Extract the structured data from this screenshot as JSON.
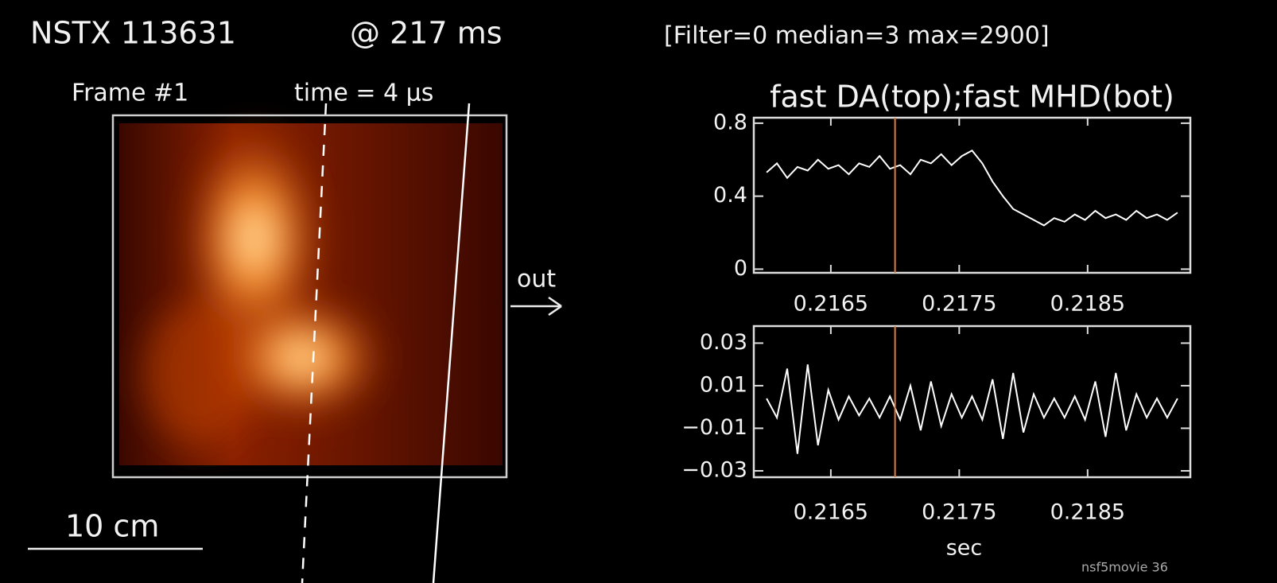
{
  "header": {
    "title": "NSTX 113631",
    "time": "@ 217 ms",
    "settings": "[Filter=0  median=3  max=2900]"
  },
  "image_panel": {
    "frame": "Frame #1",
    "time": "time = 4 μs",
    "direction": "out",
    "scale": "10 cm"
  },
  "footer": "nsf5movie 36",
  "chart_data": [
    {
      "type": "line",
      "title": "fast DA(top);fast MHD(bot)",
      "x": [
        0.216,
        0.21608,
        0.21616,
        0.21624,
        0.21632,
        0.2164,
        0.21648,
        0.21656,
        0.21664,
        0.21672,
        0.2168,
        0.21688,
        0.21696,
        0.21704,
        0.21712,
        0.2172,
        0.21728,
        0.21736,
        0.21744,
        0.21752,
        0.2176,
        0.21768,
        0.21776,
        0.21784,
        0.21792,
        0.218,
        0.21808,
        0.21816,
        0.21824,
        0.21832,
        0.2184,
        0.21848,
        0.21856,
        0.21864,
        0.21872,
        0.2188,
        0.21888,
        0.21896,
        0.21904,
        0.21912,
        0.2192
      ],
      "series": [
        {
          "color": "#ffffff",
          "values": [
            0.53,
            0.58,
            0.5,
            0.56,
            0.54,
            0.6,
            0.55,
            0.57,
            0.52,
            0.58,
            0.56,
            0.62,
            0.55,
            0.57,
            0.52,
            0.6,
            0.58,
            0.63,
            0.57,
            0.62,
            0.65,
            0.58,
            0.48,
            0.4,
            0.33,
            0.3,
            0.27,
            0.24,
            0.28,
            0.26,
            0.3,
            0.27,
            0.32,
            0.28,
            0.3,
            0.27,
            0.32,
            0.28,
            0.3,
            0.27,
            0.31
          ]
        }
      ],
      "xlim": [
        0.2159,
        0.2193
      ],
      "ylim": [
        -0.02,
        0.83
      ],
      "xticks": [
        0.2165,
        0.2175,
        0.2185
      ],
      "yticks": [
        0,
        0.4,
        0.8
      ],
      "cursor": 0.217,
      "cursor_color": "#e07a3a"
    },
    {
      "type": "line",
      "x_label": "sec",
      "x": [
        0.216,
        0.21608,
        0.21616,
        0.21624,
        0.21632,
        0.2164,
        0.21648,
        0.21656,
        0.21664,
        0.21672,
        0.2168,
        0.21688,
        0.21696,
        0.21704,
        0.21712,
        0.2172,
        0.21728,
        0.21736,
        0.21744,
        0.21752,
        0.2176,
        0.21768,
        0.21776,
        0.21784,
        0.21792,
        0.218,
        0.21808,
        0.21816,
        0.21824,
        0.21832,
        0.2184,
        0.21848,
        0.21856,
        0.21864,
        0.21872,
        0.2188,
        0.21888,
        0.21896,
        0.21904,
        0.21912,
        0.2192
      ],
      "series": [
        {
          "color": "#ffffff",
          "values": [
            0.004,
            -0.005,
            0.018,
            -0.022,
            0.02,
            -0.018,
            0.008,
            -0.006,
            0.005,
            -0.004,
            0.004,
            -0.005,
            0.005,
            -0.006,
            0.01,
            -0.011,
            0.012,
            -0.009,
            0.006,
            -0.005,
            0.005,
            -0.006,
            0.013,
            -0.015,
            0.016,
            -0.012,
            0.006,
            -0.005,
            0.004,
            -0.005,
            0.005,
            -0.006,
            0.012,
            -0.014,
            0.016,
            -0.011,
            0.006,
            -0.005,
            0.004,
            -0.005,
            0.004
          ]
        }
      ],
      "xlim": [
        0.2159,
        0.2193
      ],
      "ylim": [
        -0.033,
        0.038
      ],
      "xticks": [
        0.2165,
        0.2175,
        0.2185
      ],
      "yticks": [
        0.03,
        0.01,
        {
          "value": -0.01,
          "label": "−0.01"
        },
        {
          "value": -0.03,
          "label": "−0.03"
        }
      ],
      "cursor": 0.217,
      "cursor_color": "#e07a3a"
    }
  ]
}
